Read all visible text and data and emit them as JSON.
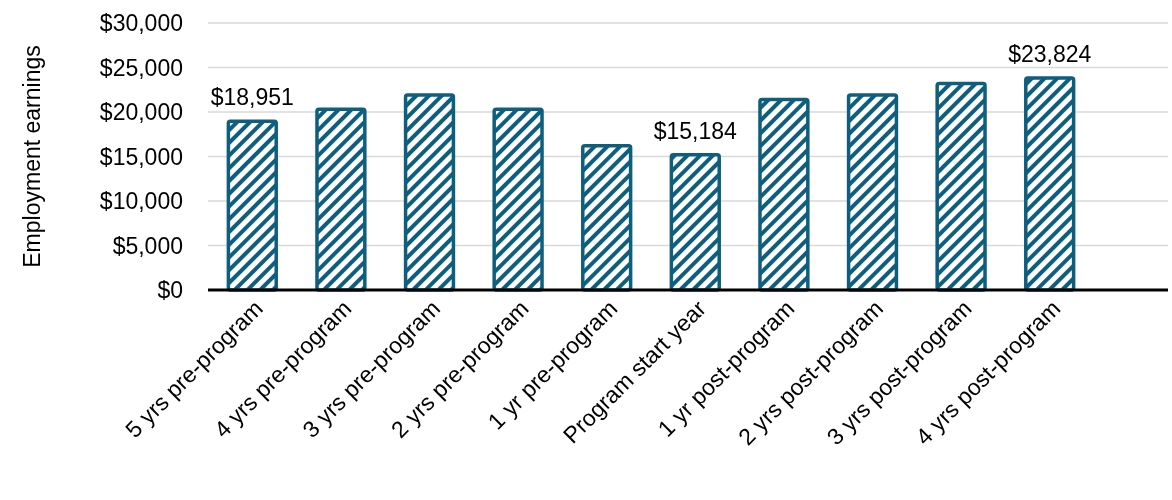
{
  "chart_data": {
    "type": "bar",
    "ylabel": "Employment earnings",
    "categories": [
      "5 yrs pre-program",
      "4 yrs pre-program",
      "3 yrs pre-program",
      "2 yrs pre-program",
      "1 yr pre-program",
      "Program start year",
      "1 yr post-program",
      "2 yrs post-program",
      "3 yrs post-program",
      "4 yrs post-program"
    ],
    "values": [
      18951,
      20300,
      21900,
      20300,
      16200,
      15184,
      21400,
      21900,
      23200,
      23824
    ],
    "value_labels": [
      "$18,951",
      null,
      null,
      null,
      null,
      "$15,184",
      null,
      null,
      null,
      "$23,824"
    ],
    "color": "#0e5f7e",
    "ylim": [
      0,
      30000
    ],
    "yticks": [
      {
        "value": 0,
        "label": "$0"
      },
      {
        "value": 5000,
        "label": "$5,000"
      },
      {
        "value": 10000,
        "label": "$10,000"
      },
      {
        "value": 15000,
        "label": "$15,000"
      },
      {
        "value": 20000,
        "label": "$20,000"
      },
      {
        "value": 25000,
        "label": "$25,000"
      },
      {
        "value": 30000,
        "label": "$30,000"
      }
    ],
    "grid": "y"
  }
}
